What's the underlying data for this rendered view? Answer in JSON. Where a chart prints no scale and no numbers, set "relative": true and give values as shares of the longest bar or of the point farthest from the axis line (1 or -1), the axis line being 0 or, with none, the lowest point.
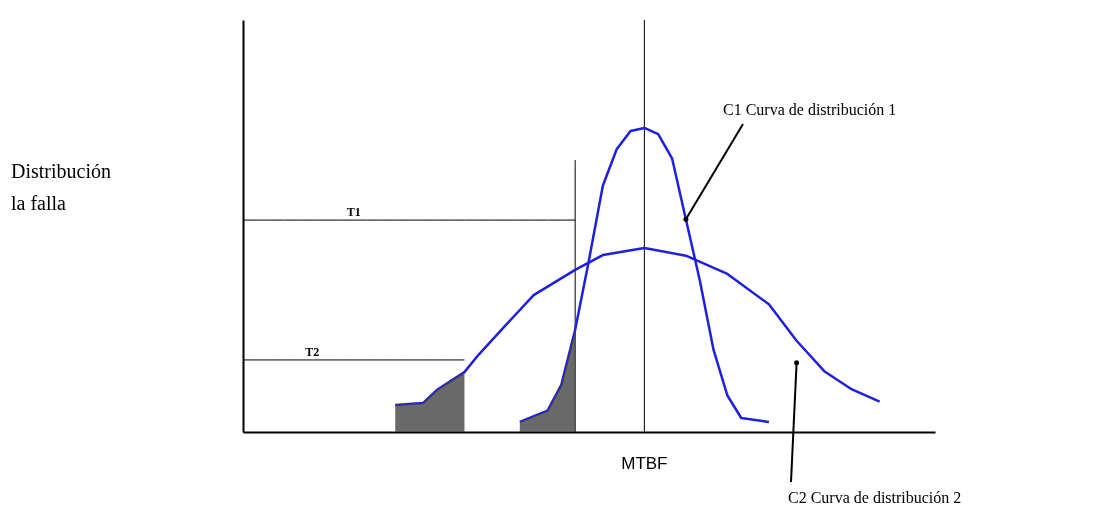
{
  "chart_data": {
    "type": "line",
    "relative": true,
    "tick_labels": false,
    "grid": false,
    "line_style": "solid",
    "categories": [
      null,
      null,
      null,
      null,
      null,
      null,
      null,
      null,
      null,
      null,
      null,
      null,
      null,
      null,
      null,
      null,
      null,
      null,
      null,
      null,
      null,
      null,
      null,
      null,
      null,
      null,
      null,
      null,
      null,
      null,
      null,
      null,
      null,
      null,
      null,
      null,
      null,
      null,
      null,
      null,
      null,
      null,
      null,
      null,
      null,
      null,
      null,
      null,
      null,
      null,
      null
    ],
    "series": [
      {
        "name": "C1 Curva de distribución 1",
        "color": "#1f1fe0",
        "values": [
          null,
          null,
          null,
          null,
          null,
          null,
          null,
          null,
          null,
          null,
          null,
          null,
          null,
          null,
          null,
          null,
          null,
          null,
          null,
          null,
          0.033,
          null,
          0.07,
          0.155,
          0.336,
          0.566,
          0.81,
          0.93,
          0.99,
          1.0,
          0.98,
          0.9,
          0.7,
          0.5,
          0.27,
          0.12,
          0.046,
          null,
          0.033,
          null,
          null,
          null,
          null,
          null,
          null,
          null,
          null,
          null,
          null,
          null,
          null
        ]
      },
      {
        "name": "C2 Curva de distribución 2",
        "color": "#1f1fe0",
        "values": [
          null,
          null,
          null,
          null,
          null,
          null,
          null,
          null,
          null,
          null,
          null,
          0.089,
          null,
          0.095,
          0.138,
          null,
          0.197,
          0.253,
          null,
          0.352,
          null,
          0.45,
          null,
          null,
          0.533,
          null,
          0.582,
          null,
          null,
          0.605,
          null,
          null,
          0.58,
          null,
          null,
          0.52,
          null,
          null,
          0.42,
          null,
          0.3,
          null,
          0.2,
          null,
          0.14,
          null,
          0.1,
          null,
          null,
          null,
          null
        ]
      },
      {
        "type": "area",
        "color": "#444444",
        "values": [
          null,
          null,
          null,
          null,
          null,
          null,
          null,
          null,
          null,
          null,
          null,
          0.089,
          null,
          0.095,
          0.138,
          null,
          0.197,
          null,
          null,
          null,
          null,
          null,
          null,
          null,
          null,
          null,
          null,
          null,
          null,
          null,
          null,
          null,
          null,
          null,
          null,
          null,
          null,
          null,
          null,
          null,
          null,
          null,
          null,
          null,
          null,
          null,
          null,
          null,
          null,
          null,
          null
        ]
      },
      {
        "type": "area",
        "color": "#444444",
        "values": [
          null,
          null,
          null,
          null,
          null,
          null,
          null,
          null,
          null,
          null,
          null,
          null,
          null,
          null,
          null,
          null,
          null,
          null,
          null,
          null,
          0.033,
          null,
          0.07,
          0.155,
          0.336,
          null,
          null,
          null,
          null,
          null,
          null,
          null,
          null,
          null,
          null,
          null,
          null,
          null,
          null,
          null,
          null,
          null,
          null,
          null,
          null,
          null,
          null,
          null,
          null,
          null,
          null
        ]
      },
      {
        "name": "T1",
        "color": "#000000",
        "values": [
          0.697,
          0.697,
          0.697,
          0.697,
          0.697,
          0.697,
          0.697,
          0.697,
          0.697,
          0.697,
          0.697,
          0.697,
          0.697,
          0.697,
          0.697,
          0.697,
          0.697,
          0.697,
          0.697,
          0.697,
          0.697,
          0.697,
          0.697,
          0.697,
          0.697,
          null,
          null,
          null,
          null,
          null,
          null,
          null,
          null,
          null,
          null,
          null,
          null,
          null,
          null,
          null,
          null,
          null,
          null,
          null,
          null,
          null,
          null,
          null,
          null,
          null,
          null
        ]
      },
      {
        "name": "T2",
        "color": "#000000",
        "values": [
          0.237,
          0.237,
          0.237,
          0.237,
          0.237,
          0.237,
          0.237,
          0.237,
          0.237,
          0.237,
          0.237,
          0.237,
          0.237,
          0.237,
          0.237,
          0.237,
          0.237,
          null,
          null,
          null,
          null,
          null,
          null,
          null,
          null,
          null,
          null,
          null,
          null,
          null,
          null,
          null,
          null,
          null,
          null,
          null,
          null,
          null,
          null,
          null,
          null,
          null,
          null,
          null,
          null,
          null,
          null,
          null,
          null,
          null,
          null
        ]
      }
    ],
    "annotations": [
      "Distribución\nla falla",
      "MTBF"
    ]
  }
}
